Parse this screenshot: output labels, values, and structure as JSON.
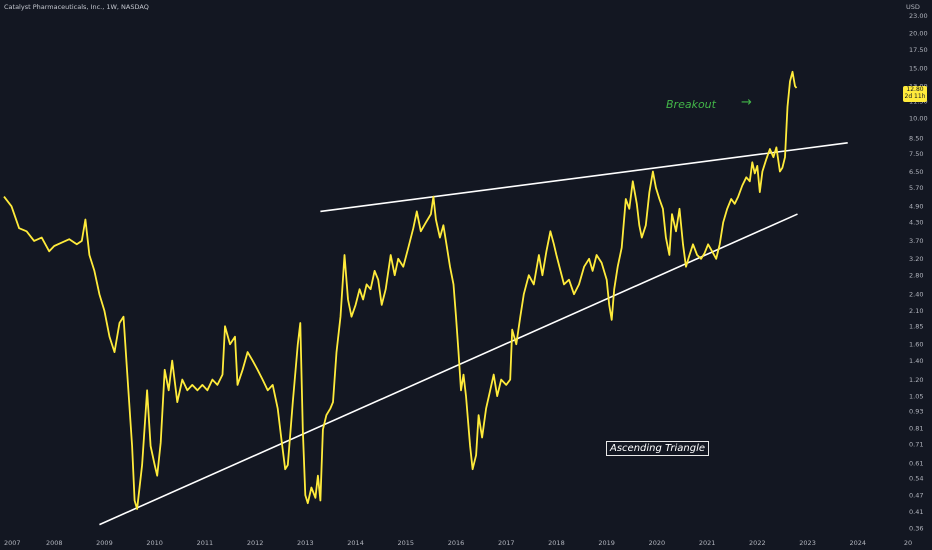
{
  "header": {
    "title": "Catalyst Pharmaceuticals, Inc., 1W, NASDAQ"
  },
  "price_tag": {
    "price": "12.80",
    "countdown": "2d 11h"
  },
  "annotations": {
    "breakout": "Breakout",
    "breakout_arrow": "→",
    "pattern": "Ascending Triangle"
  },
  "colors": {
    "background": "#131722",
    "price_line": "#ffeb3b",
    "trendline": "#ffffff",
    "breakout_text": "#43b649",
    "axis_text": "#b2b5be"
  },
  "chart_data": {
    "type": "line",
    "title": "Catalyst Pharmaceuticals, Inc., 1W, NASDAQ",
    "currency": "USD",
    "yscale": "log",
    "ylim": [
      0.34,
      24.5
    ],
    "xlim": [
      2007.0,
      2025.0
    ],
    "x_ticks": [
      "2007",
      "2008",
      "2009",
      "2010",
      "2011",
      "2012",
      "2013",
      "2014",
      "2015",
      "2016",
      "2017",
      "2018",
      "2019",
      "2020",
      "2021",
      "2022",
      "2023",
      "2024",
      "20"
    ],
    "y_ticks": [
      "23.00",
      "20.00",
      "17.50",
      "15.00",
      "13.00",
      "11.50",
      "10.00",
      "8.50",
      "7.50",
      "6.50",
      "5.70",
      "4.90",
      "4.30",
      "3.70",
      "3.20",
      "2.80",
      "2.40",
      "2.10",
      "1.85",
      "1.60",
      "1.40",
      "1.20",
      "1.05",
      "0.93",
      "0.81",
      "0.71",
      "0.61",
      "0.54",
      "0.47",
      "0.41",
      "0.36"
    ],
    "grid": false,
    "legend": "none",
    "series": [
      {
        "values": [
          [
            2007.0,
            5.3
          ],
          [
            2007.15,
            4.9
          ],
          [
            2007.3,
            4.1
          ],
          [
            2007.45,
            4.0
          ],
          [
            2007.6,
            3.7
          ],
          [
            2007.75,
            3.8
          ],
          [
            2007.9,
            3.4
          ],
          [
            2008.0,
            3.55
          ],
          [
            2008.15,
            3.65
          ],
          [
            2008.3,
            3.75
          ],
          [
            2008.45,
            3.6
          ],
          [
            2008.55,
            3.7
          ],
          [
            2008.62,
            4.4
          ],
          [
            2008.7,
            3.3
          ],
          [
            2008.8,
            2.9
          ],
          [
            2008.9,
            2.4
          ],
          [
            2009.0,
            2.1
          ],
          [
            2009.1,
            1.7
          ],
          [
            2009.2,
            1.5
          ],
          [
            2009.3,
            1.9
          ],
          [
            2009.38,
            2.0
          ],
          [
            2009.45,
            1.3
          ],
          [
            2009.55,
            0.7
          ],
          [
            2009.6,
            0.45
          ],
          [
            2009.65,
            0.42
          ],
          [
            2009.75,
            0.6
          ],
          [
            2009.85,
            1.1
          ],
          [
            2009.92,
            0.7
          ],
          [
            2010.0,
            0.6
          ],
          [
            2010.05,
            0.55
          ],
          [
            2010.12,
            0.72
          ],
          [
            2010.2,
            1.3
          ],
          [
            2010.28,
            1.1
          ],
          [
            2010.35,
            1.4
          ],
          [
            2010.45,
            1.0
          ],
          [
            2010.55,
            1.2
          ],
          [
            2010.65,
            1.1
          ],
          [
            2010.75,
            1.15
          ],
          [
            2010.85,
            1.1
          ],
          [
            2010.95,
            1.15
          ],
          [
            2011.05,
            1.1
          ],
          [
            2011.15,
            1.2
          ],
          [
            2011.25,
            1.15
          ],
          [
            2011.35,
            1.25
          ],
          [
            2011.4,
            1.85
          ],
          [
            2011.5,
            1.6
          ],
          [
            2011.6,
            1.7
          ],
          [
            2011.65,
            1.15
          ],
          [
            2011.75,
            1.3
          ],
          [
            2011.85,
            1.5
          ],
          [
            2011.95,
            1.4
          ],
          [
            2012.05,
            1.3
          ],
          [
            2012.15,
            1.2
          ],
          [
            2012.25,
            1.1
          ],
          [
            2012.35,
            1.15
          ],
          [
            2012.45,
            0.95
          ],
          [
            2012.52,
            0.75
          ],
          [
            2012.6,
            0.58
          ],
          [
            2012.65,
            0.6
          ],
          [
            2012.75,
            1.0
          ],
          [
            2012.85,
            1.6
          ],
          [
            2012.9,
            1.9
          ],
          [
            2012.95,
            0.8
          ],
          [
            2013.0,
            0.47
          ],
          [
            2013.05,
            0.44
          ],
          [
            2013.12,
            0.5
          ],
          [
            2013.2,
            0.46
          ],
          [
            2013.25,
            0.55
          ],
          [
            2013.3,
            0.45
          ],
          [
            2013.35,
            0.8
          ],
          [
            2013.42,
            0.9
          ],
          [
            2013.5,
            0.95
          ],
          [
            2013.55,
            1.0
          ],
          [
            2013.62,
            1.5
          ],
          [
            2013.7,
            2.0
          ],
          [
            2013.78,
            3.3
          ],
          [
            2013.85,
            2.3
          ],
          [
            2013.92,
            2.0
          ],
          [
            2014.0,
            2.2
          ],
          [
            2014.08,
            2.5
          ],
          [
            2014.15,
            2.3
          ],
          [
            2014.22,
            2.6
          ],
          [
            2014.3,
            2.5
          ],
          [
            2014.38,
            2.9
          ],
          [
            2014.45,
            2.7
          ],
          [
            2014.52,
            2.2
          ],
          [
            2014.6,
            2.5
          ],
          [
            2014.7,
            3.3
          ],
          [
            2014.78,
            2.8
          ],
          [
            2014.85,
            3.2
          ],
          [
            2014.95,
            3.0
          ],
          [
            2015.05,
            3.5
          ],
          [
            2015.15,
            4.1
          ],
          [
            2015.22,
            4.7
          ],
          [
            2015.3,
            4.0
          ],
          [
            2015.4,
            4.3
          ],
          [
            2015.5,
            4.6
          ],
          [
            2015.55,
            5.3
          ],
          [
            2015.6,
            4.4
          ],
          [
            2015.68,
            3.8
          ],
          [
            2015.75,
            4.2
          ],
          [
            2015.82,
            3.5
          ],
          [
            2015.88,
            3.0
          ],
          [
            2015.95,
            2.6
          ],
          [
            2016.0,
            2.0
          ],
          [
            2016.05,
            1.5
          ],
          [
            2016.1,
            1.1
          ],
          [
            2016.15,
            1.25
          ],
          [
            2016.2,
            1.05
          ],
          [
            2016.28,
            0.7
          ],
          [
            2016.33,
            0.58
          ],
          [
            2016.4,
            0.65
          ],
          [
            2016.45,
            0.9
          ],
          [
            2016.52,
            0.75
          ],
          [
            2016.6,
            0.95
          ],
          [
            2016.68,
            1.1
          ],
          [
            2016.75,
            1.25
          ],
          [
            2016.82,
            1.05
          ],
          [
            2016.9,
            1.2
          ],
          [
            2017.0,
            1.15
          ],
          [
            2017.08,
            1.2
          ],
          [
            2017.12,
            1.8
          ],
          [
            2017.2,
            1.6
          ],
          [
            2017.28,
            2.0
          ],
          [
            2017.35,
            2.4
          ],
          [
            2017.45,
            2.8
          ],
          [
            2017.55,
            2.6
          ],
          [
            2017.65,
            3.3
          ],
          [
            2017.72,
            2.8
          ],
          [
            2017.8,
            3.4
          ],
          [
            2017.88,
            4.0
          ],
          [
            2017.95,
            3.6
          ],
          [
            2018.0,
            3.3
          ],
          [
            2018.08,
            2.9
          ],
          [
            2018.15,
            2.6
          ],
          [
            2018.25,
            2.7
          ],
          [
            2018.35,
            2.4
          ],
          [
            2018.45,
            2.6
          ],
          [
            2018.55,
            3.0
          ],
          [
            2018.65,
            3.2
          ],
          [
            2018.72,
            2.9
          ],
          [
            2018.8,
            3.3
          ],
          [
            2018.9,
            3.1
          ],
          [
            2019.0,
            2.7
          ],
          [
            2019.05,
            2.2
          ],
          [
            2019.1,
            1.95
          ],
          [
            2019.15,
            2.5
          ],
          [
            2019.22,
            3.0
          ],
          [
            2019.3,
            3.5
          ],
          [
            2019.38,
            5.2
          ],
          [
            2019.45,
            4.8
          ],
          [
            2019.52,
            6.0
          ],
          [
            2019.6,
            5.0
          ],
          [
            2019.65,
            4.2
          ],
          [
            2019.7,
            3.8
          ],
          [
            2019.78,
            4.2
          ],
          [
            2019.85,
            5.5
          ],
          [
            2019.92,
            6.5
          ],
          [
            2019.98,
            5.7
          ],
          [
            2020.05,
            5.2
          ],
          [
            2020.12,
            4.8
          ],
          [
            2020.18,
            3.8
          ],
          [
            2020.25,
            3.3
          ],
          [
            2020.3,
            4.6
          ],
          [
            2020.38,
            4.0
          ],
          [
            2020.45,
            4.8
          ],
          [
            2020.52,
            3.6
          ],
          [
            2020.58,
            3.0
          ],
          [
            2020.65,
            3.3
          ],
          [
            2020.72,
            3.6
          ],
          [
            2020.8,
            3.3
          ],
          [
            2020.88,
            3.2
          ],
          [
            2020.95,
            3.35
          ],
          [
            2021.02,
            3.6
          ],
          [
            2021.1,
            3.4
          ],
          [
            2021.18,
            3.2
          ],
          [
            2021.25,
            3.6
          ],
          [
            2021.32,
            4.3
          ],
          [
            2021.4,
            4.8
          ],
          [
            2021.48,
            5.2
          ],
          [
            2021.55,
            5.0
          ],
          [
            2021.62,
            5.3
          ],
          [
            2021.7,
            5.8
          ],
          [
            2021.78,
            6.2
          ],
          [
            2021.85,
            6.0
          ],
          [
            2021.9,
            7.0
          ],
          [
            2021.95,
            6.4
          ],
          [
            2022.0,
            6.8
          ],
          [
            2022.05,
            5.5
          ],
          [
            2022.1,
            6.5
          ],
          [
            2022.18,
            7.2
          ],
          [
            2022.25,
            7.8
          ],
          [
            2022.32,
            7.3
          ],
          [
            2022.38,
            7.9
          ],
          [
            2022.45,
            6.5
          ],
          [
            2022.5,
            6.7
          ],
          [
            2022.55,
            7.3
          ],
          [
            2022.6,
            11.0
          ],
          [
            2022.65,
            13.5
          ],
          [
            2022.7,
            14.6
          ],
          [
            2022.75,
            13.0
          ],
          [
            2022.78,
            12.8
          ]
        ]
      }
    ],
    "trendlines": [
      {
        "name": "resistance",
        "points": [
          [
            2013.3,
            4.7
          ],
          [
            2023.8,
            8.2
          ]
        ]
      },
      {
        "name": "support",
        "points": [
          [
            2008.9,
            0.37
          ],
          [
            2022.8,
            4.6
          ]
        ]
      }
    ]
  }
}
